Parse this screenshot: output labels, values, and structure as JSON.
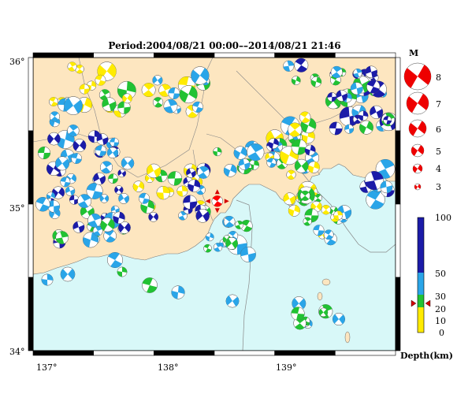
{
  "title": "Period:2004/08/21 00:00––2014/08/21 21:46",
  "map": {
    "lat_ticks": [
      "36°",
      "35°",
      "34°"
    ],
    "lon_ticks": [
      "137°",
      "138°",
      "139°"
    ],
    "lon_range": [
      136.85,
      139.9
    ],
    "lat_range": [
      34.0,
      36.0
    ],
    "land_color": "#fde6c0",
    "sea_color": "#d8f8f8",
    "main_event": {
      "lon": 138.4,
      "lat": 35.02,
      "color": "#ff0000"
    }
  },
  "magnitude_legend": {
    "label": "M",
    "items": [
      "8",
      "7",
      "6",
      "5",
      "4",
      "3"
    ]
  },
  "depth_scale": {
    "label": "Depth(km)",
    "ticks": [
      "100",
      "50",
      "30",
      "20",
      "10",
      "0"
    ],
    "colors": {
      "shallow": "#ffeb00",
      "d10_20": "#21c233",
      "d20_50": "#2aa5e8",
      "deep": "#1b1ba8"
    },
    "marker_depth_label": "≈ 25 km"
  }
}
